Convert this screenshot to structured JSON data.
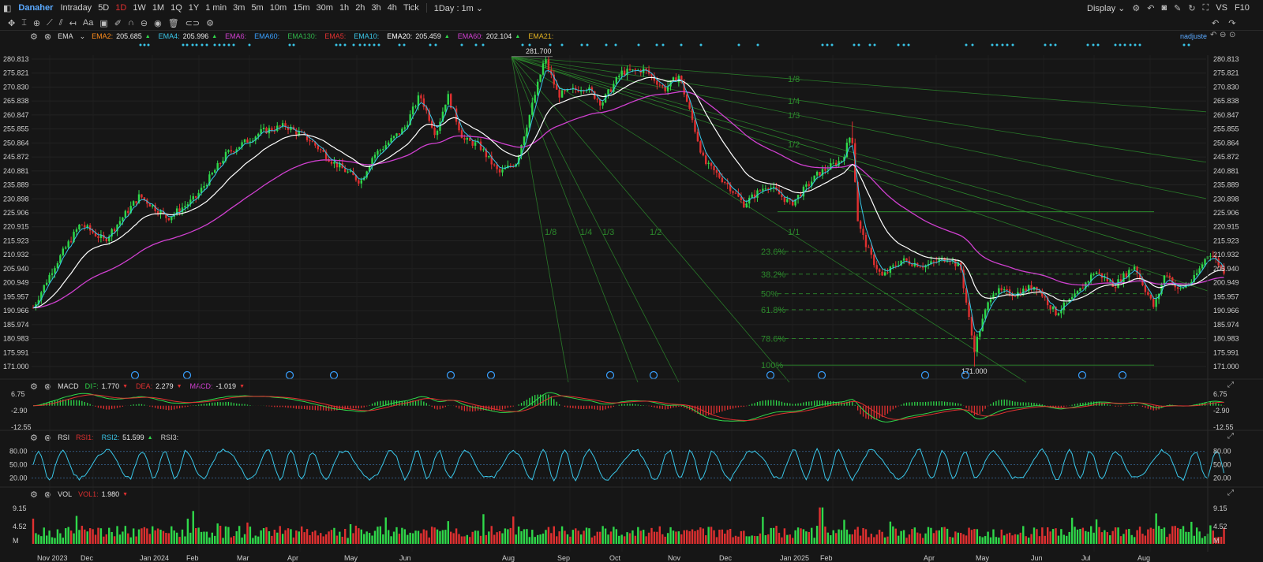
{
  "toolbar": {
    "symbol": "Danaher",
    "timeframes": [
      "Intraday",
      "5D",
      "1D",
      "1W",
      "1M",
      "1Q",
      "1Y",
      "1 min",
      "3m",
      "5m",
      "10m",
      "15m",
      "30m",
      "1h",
      "2h",
      "3h",
      "4h",
      "Tick"
    ],
    "active_timeframe": "1D",
    "period": "1Day : 1m",
    "display": "Display",
    "vs": "VS",
    "f10": "F10"
  },
  "main_panel": {
    "indicator": "EMA",
    "legend": [
      {
        "name": "EMA2:",
        "value": "205.685",
        "color": "#ff8c1a",
        "arrow": "▲"
      },
      {
        "name": "EMA4:",
        "value": "205.996",
        "color": "#39c6e8",
        "arrow": "▲"
      },
      {
        "name": "EMA6:",
        "value": "",
        "color": "#d040d0",
        "arrow": ""
      },
      {
        "name": "EMA60:",
        "value": "",
        "color": "#39a0ff",
        "arrow": ""
      },
      {
        "name": "EMA130:",
        "value": "",
        "color": "#2fb24a",
        "arrow": ""
      },
      {
        "name": "EMA5:",
        "value": "",
        "color": "#e03030",
        "arrow": ""
      },
      {
        "name": "EMA10:",
        "value": "",
        "color": "#39c6e8",
        "arrow": ""
      },
      {
        "name": "EMA20:",
        "value": "205.459",
        "color": "#ffffff",
        "arrow": "▲"
      },
      {
        "name": "EMA60:",
        "value": "202.104",
        "color": "#d040d0",
        "arrow": "▲"
      },
      {
        "name": "EMA21:",
        "value": "",
        "color": "#e0b020",
        "arrow": ""
      }
    ],
    "adjust_label": "nadjuste",
    "y_ticks": [
      "280.813",
      "275.821",
      "270.830",
      "265.838",
      "260.847",
      "255.855",
      "250.864",
      "245.872",
      "240.881",
      "235.889",
      "230.898",
      "225.906",
      "220.915",
      "215.923",
      "210.932",
      "205.940",
      "200.949",
      "195.957",
      "190.966",
      "185.974",
      "180.983",
      "175.991",
      "171.000"
    ],
    "high_label": "281.700",
    "low_label": "171.000",
    "gann_labels": [
      "1/8",
      "1/4",
      "1/3",
      "1/2",
      "1/8",
      "1/4",
      "1/3",
      "1/2",
      "1/1"
    ],
    "fib_labels": [
      "23.6%",
      "38.2%",
      "50%",
      "61.8%",
      "78.6%",
      "100%"
    ]
  },
  "x_ticks": [
    "Nov 2023",
    "Dec",
    "Jan 2024",
    "Feb",
    "Mar",
    "Apr",
    "May",
    "Jun",
    "Aug",
    "Sep",
    "Oct",
    "Nov",
    "Dec",
    "Jan 2025",
    "Feb",
    "Apr",
    "May",
    "Jun",
    "Jul",
    "Aug"
  ],
  "macd_panel": {
    "name": "MACD",
    "legend": [
      {
        "name": "DIF:",
        "value": "1.770",
        "color": "#2fd84a",
        "arrow": "▼"
      },
      {
        "name": "DEA:",
        "value": "2.279",
        "color": "#e03030",
        "arrow": "▼"
      },
      {
        "name": "MACD:",
        "value": "-1.019",
        "color": "#d040d0",
        "arrow": "▼"
      }
    ],
    "y_ticks": [
      "6.75",
      "-2.90",
      "-12.55"
    ]
  },
  "rsi_panel": {
    "name": "RSI",
    "legend": [
      {
        "name": "RSI1:",
        "value": "",
        "color": "#e03030",
        "arrow": ""
      },
      {
        "name": "RSI2:",
        "value": "51.599",
        "color": "#39c6e8",
        "arrow": "▲"
      },
      {
        "name": "RSI3:",
        "value": "",
        "color": "#cfcfcf",
        "arrow": ""
      }
    ],
    "y_ticks": [
      "80.00",
      "50.00",
      "20.00"
    ]
  },
  "vol_panel": {
    "name": "VOL",
    "legend": [
      {
        "name": "VOL1:",
        "value": "1.980",
        "color": "#e03030",
        "arrow": "▼"
      }
    ],
    "y_ticks": [
      "9.15",
      "4.52",
      "M"
    ]
  },
  "colors": {
    "up": "#2fd84a",
    "down": "#e03030",
    "ema20": "#ffffff",
    "ema60": "#d040d0",
    "ema4": "#39c6e8",
    "gann": "#2c8a2c"
  }
}
